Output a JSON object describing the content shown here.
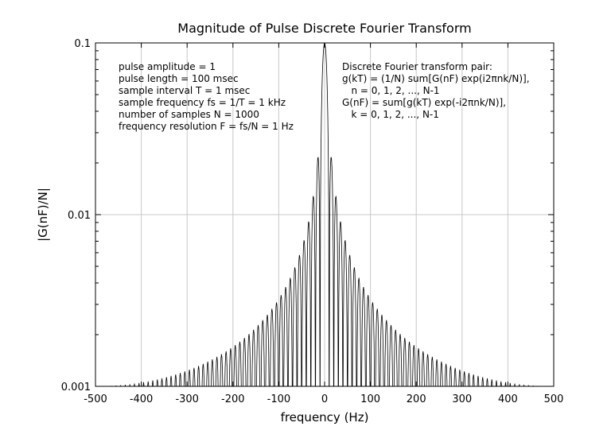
{
  "chart_data": {
    "type": "line",
    "title": "Magnitude of Pulse Discrete Fourier Transform",
    "xlabel": "frequency (Hz)",
    "ylabel": "|G(nF)/N|",
    "xlim": [
      -500,
      500
    ],
    "ylim": [
      0.001,
      0.1
    ],
    "yscale": "log",
    "grid": true,
    "x_ticks": [
      "-500",
      "-400",
      "-300",
      "-200",
      "-100",
      "0",
      "100",
      "200",
      "300",
      "400",
      "500"
    ],
    "y_ticks": [
      "0.001",
      "0.01",
      "0.1"
    ],
    "series": [
      {
        "function": "|sin(pi*f*0.1)/(N*sin(pi*f/1000))| with N = 1000",
        "x_start": -500,
        "x_end": 500,
        "x_step": 1,
        "peak": {
          "x": 0,
          "y": 0.1
        },
        "sidelobe_peaks_positive_f": [
          {
            "x": 15,
            "y": 0.0212
          },
          {
            "x": 25,
            "y": 0.0127
          },
          {
            "x": 35,
            "y": 0.0091
          },
          {
            "x": 45,
            "y": 0.0071
          },
          {
            "x": 55,
            "y": 0.0058
          },
          {
            "x": 65,
            "y": 0.0049
          },
          {
            "x": 75,
            "y": 0.0043
          },
          {
            "x": 85,
            "y": 0.0038
          },
          {
            "x": 95,
            "y": 0.0034
          },
          {
            "x": 105,
            "y": 0.0031
          },
          {
            "x": 155,
            "y": 0.0021
          },
          {
            "x": 205,
            "y": 0.0016
          },
          {
            "x": 255,
            "y": 0.0014
          },
          {
            "x": 305,
            "y": 0.0012
          },
          {
            "x": 355,
            "y": 0.0011
          },
          {
            "x": 405,
            "y": 0.00104
          },
          {
            "x": 455,
            "y": 0.00101
          }
        ]
      }
    ]
  },
  "annotations": {
    "left": [
      "pulse amplitude = 1",
      "pulse length = 100 msec",
      "sample interval T = 1 msec",
      "sample frequency fs = 1/T = 1 kHz",
      "number of samples N = 1000",
      "frequency resolution F = fs/N = 1 Hz"
    ],
    "right": [
      "Discrete Fourier transform pair:",
      "g(kT) = (1/N) sum[G(nF) exp(i2πnk/N)],",
      "   n = 0, 1, 2, ..., N-1",
      "G(nF) = sum[g(kT) exp(-i2πnk/N)],",
      "   k = 0, 1, 2, ..., N-1"
    ]
  }
}
